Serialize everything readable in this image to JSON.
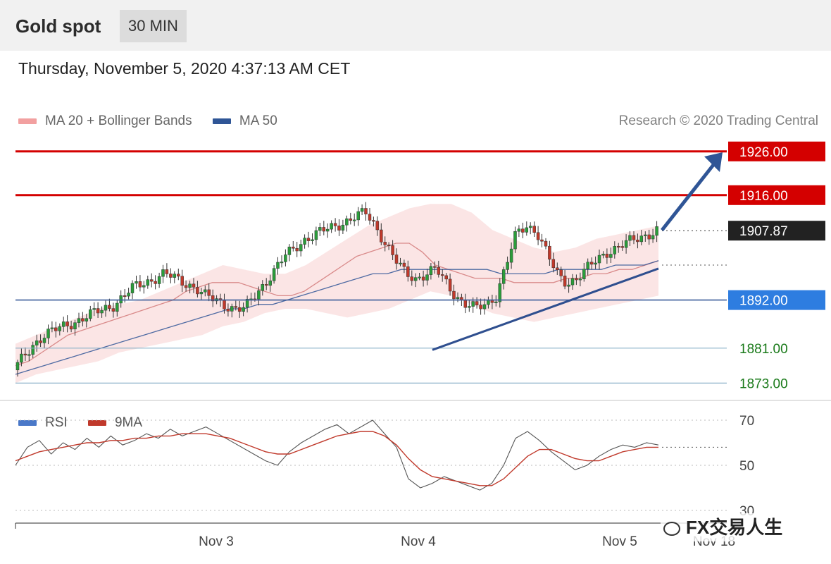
{
  "header": {
    "instrument": "Gold spot",
    "timeframe": "30 MIN"
  },
  "datetime": "Thursday, November 5, 2020 4:37:13 AM CET",
  "legend": [
    {
      "label": "MA 20 + Bollinger Bands",
      "color": "#f2a0a0"
    },
    {
      "label": "MA 50",
      "color": "#2f5596"
    }
  ],
  "credit": "Research © 2020 Trading Central",
  "rsi_legend": [
    {
      "label": "RSI",
      "color": "#4a78c8"
    },
    {
      "label": "9MA",
      "color": "#c0392b"
    }
  ],
  "watermark": "FX交易人生",
  "chart_data": [
    {
      "type": "candlestick",
      "ylim": [
        1870,
        1930
      ],
      "x_ticks": [
        "Nov 3",
        "Nov 4",
        "Nov 5",
        "Nov 18"
      ],
      "close_path": [
        1876,
        1879,
        1882,
        1884,
        1885,
        1886,
        1887,
        1888,
        1889,
        1890,
        1891,
        1893,
        1895,
        1896,
        1897,
        1898,
        1897,
        1896,
        1895,
        1893,
        1892,
        1891,
        1890,
        1890,
        1893,
        1896,
        1899,
        1902,
        1904,
        1906,
        1907,
        1908,
        1909,
        1910,
        1911,
        1912,
        1909,
        1905,
        1901,
        1898,
        1897,
        1898,
        1899,
        1896,
        1893,
        1891,
        1890,
        1891,
        1893,
        1900,
        1907,
        1909,
        1908,
        1903,
        1898,
        1896,
        1897,
        1899,
        1901,
        1903,
        1904,
        1905,
        1906,
        1907,
        1908
      ],
      "ma20_path": [
        1877,
        1878,
        1880,
        1882,
        1884,
        1885,
        1886,
        1887,
        1888,
        1889,
        1890,
        1891,
        1892,
        1894,
        1895,
        1896,
        1896,
        1896,
        1895,
        1894,
        1893,
        1893,
        1894,
        1896,
        1898,
        1900,
        1902,
        1903,
        1904,
        1905,
        1905,
        1903,
        1900,
        1899,
        1898,
        1897,
        1897,
        1897,
        1896,
        1896,
        1896,
        1896,
        1897,
        1897,
        1898,
        1898,
        1899,
        1899,
        1900,
        1901
      ],
      "ma50_path": [
        1875,
        1876,
        1877,
        1878,
        1879,
        1880,
        1881,
        1882,
        1883,
        1884,
        1885,
        1886,
        1887,
        1888,
        1889,
        1890,
        1890,
        1891,
        1891,
        1892,
        1893,
        1894,
        1895,
        1896,
        1897,
        1898,
        1898,
        1899,
        1899,
        1899,
        1899,
        1899,
        1899,
        1899,
        1898,
        1898,
        1898,
        1898,
        1899,
        1899,
        1899,
        1899,
        1900,
        1900,
        1900,
        1901
      ],
      "bollinger_upper": [
        1882,
        1884,
        1886,
        1888,
        1890,
        1891,
        1892,
        1894,
        1896,
        1898,
        1900,
        1899,
        1898,
        1898,
        1900,
        1903,
        1906,
        1909,
        1911,
        1913,
        1914,
        1914,
        1912,
        1908,
        1906,
        1904,
        1903,
        1904,
        1906,
        1907,
        1908,
        1909
      ],
      "bollinger_lower": [
        1873,
        1875,
        1876,
        1877,
        1878,
        1880,
        1881,
        1882,
        1883,
        1884,
        1886,
        1887,
        1889,
        1890,
        1890,
        1889,
        1888,
        1889,
        1890,
        1892,
        1894,
        1893,
        1891,
        1889,
        1888,
        1887,
        1888,
        1889,
        1890,
        1891,
        1892,
        1893
      ],
      "levels": [
        {
          "value": 1926.0,
          "label": "1926.00",
          "color": "#d40000",
          "style": "resistance"
        },
        {
          "value": 1916.0,
          "label": "1916.00",
          "color": "#d40000",
          "style": "resistance"
        },
        {
          "value": 1907.87,
          "label": "1907.87",
          "color": "#222222",
          "style": "last-price"
        },
        {
          "value": 1892.0,
          "label": "1892.00",
          "color": "#2e7de0",
          "style": "pivot"
        },
        {
          "value": 1881.0,
          "label": "1881.00",
          "color": "#1a7a1a",
          "style": "support"
        },
        {
          "value": 1873.0,
          "label": "1873.00",
          "color": "#1a7a1a",
          "style": "support"
        }
      ]
    },
    {
      "type": "line",
      "ylim": [
        25,
        75
      ],
      "y_ticks": [
        70,
        50,
        30
      ],
      "series": [
        {
          "name": "RSI",
          "values": [
            50,
            58,
            61,
            55,
            60,
            57,
            62,
            58,
            63,
            59,
            61,
            64,
            62,
            66,
            63,
            65,
            67,
            64,
            61,
            58,
            55,
            52,
            50,
            56,
            60,
            63,
            66,
            68,
            64,
            67,
            70,
            64,
            58,
            44,
            40,
            42,
            45,
            43,
            41,
            39,
            42,
            50,
            62,
            65,
            61,
            56,
            52,
            48,
            50,
            54,
            57,
            59,
            58,
            60,
            59
          ]
        },
        {
          "name": "9MA",
          "values": [
            52,
            54,
            56,
            57,
            58,
            59,
            60,
            60,
            61,
            61,
            62,
            62,
            63,
            63,
            64,
            64,
            64,
            63,
            62,
            60,
            58,
            56,
            55,
            55,
            57,
            59,
            61,
            63,
            64,
            65,
            65,
            63,
            59,
            53,
            48,
            45,
            44,
            43,
            42,
            41,
            41,
            44,
            49,
            54,
            57,
            57,
            55,
            53,
            52,
            52,
            54,
            56,
            57,
            58,
            58
          ]
        }
      ]
    }
  ]
}
